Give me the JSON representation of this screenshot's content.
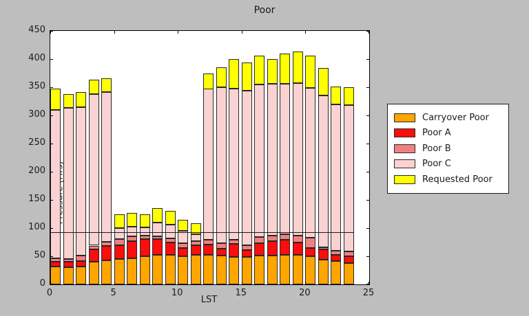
{
  "title": "Poor",
  "axes": {
    "xlabel": "LST",
    "ylabel": "Pressure (Hrs)",
    "yticks": [
      0,
      50,
      100,
      150,
      200,
      250,
      300,
      350,
      400,
      450
    ],
    "xticks": [
      0,
      5,
      10,
      15,
      20,
      25
    ]
  },
  "colors": {
    "figure_bg": "#bebebe",
    "plot_bg": "#ffffff",
    "carryover": "#ffa500",
    "poor_a": "#fd0d0d",
    "poor_b": "#f08080",
    "poor_c": "#fbd2d2",
    "requested": "#ffff00"
  },
  "legend": {
    "entries": [
      {
        "label": "Carryover Poor",
        "color": "#ffa500"
      },
      {
        "label": "Poor A",
        "color": "#fd0d0d"
      },
      {
        "label": "Poor B",
        "color": "#f08080"
      },
      {
        "label": "Poor C",
        "color": "#fbd2d2"
      },
      {
        "label": "Requested Poor",
        "color": "#ffff00"
      }
    ]
  },
  "chart_data": {
    "type": "bar",
    "stacked": true,
    "title": "Poor",
    "xlabel": "LST",
    "ylabel": "Pressure (Hrs)",
    "xlim": [
      0,
      25
    ],
    "ylim": [
      0,
      450
    ],
    "bar_width": 0.8,
    "grid": false,
    "legend_position": "outside-right",
    "categories": [
      0,
      1,
      2,
      3,
      4,
      5,
      6,
      7,
      8,
      9,
      10,
      11,
      12,
      13,
      14,
      15,
      16,
      17,
      18,
      19,
      20,
      21,
      22,
      23
    ],
    "series": [
      {
        "name": "Carryover Poor",
        "color": "#ffa500",
        "values": [
          32,
          31,
          32,
          40,
          43,
          45,
          47,
          50,
          53,
          53,
          50,
          53,
          53,
          51,
          49,
          49,
          51,
          51,
          53,
          53,
          50,
          44,
          41,
          38
        ]
      },
      {
        "name": "Poor A",
        "color": "#fd0d0d",
        "values": [
          8,
          9,
          9,
          22,
          25,
          24,
          30,
          31,
          27,
          22,
          15,
          16,
          18,
          13,
          23,
          12,
          22,
          26,
          26,
          22,
          15,
          18,
          12,
          12
        ]
      },
      {
        "name": "Poor B",
        "color": "#f08080",
        "values": [
          7,
          5,
          10,
          7,
          8,
          12,
          8,
          6,
          6,
          7,
          8,
          8,
          8,
          9,
          7,
          8,
          11,
          10,
          10,
          12,
          18,
          4,
          7,
          8
        ]
      },
      {
        "name": "Poor C",
        "color": "#fbd2d2",
        "values": [
          263,
          269,
          264,
          269,
          266,
          19,
          18,
          14,
          24,
          24,
          22,
          12,
          268,
          277,
          269,
          275,
          271,
          269,
          267,
          270,
          266,
          270,
          260,
          260
        ]
      },
      {
        "name": "Requested Poor",
        "color": "#ffff00",
        "values": [
          38,
          24,
          27,
          26,
          24,
          25,
          24,
          23,
          25,
          24,
          20,
          19,
          27,
          36,
          52,
          50,
          51,
          44,
          54,
          57,
          57,
          48,
          31,
          32
        ]
      }
    ],
    "reference_line": {
      "y": 92,
      "x_start": 0,
      "x_end": 23.8
    }
  }
}
